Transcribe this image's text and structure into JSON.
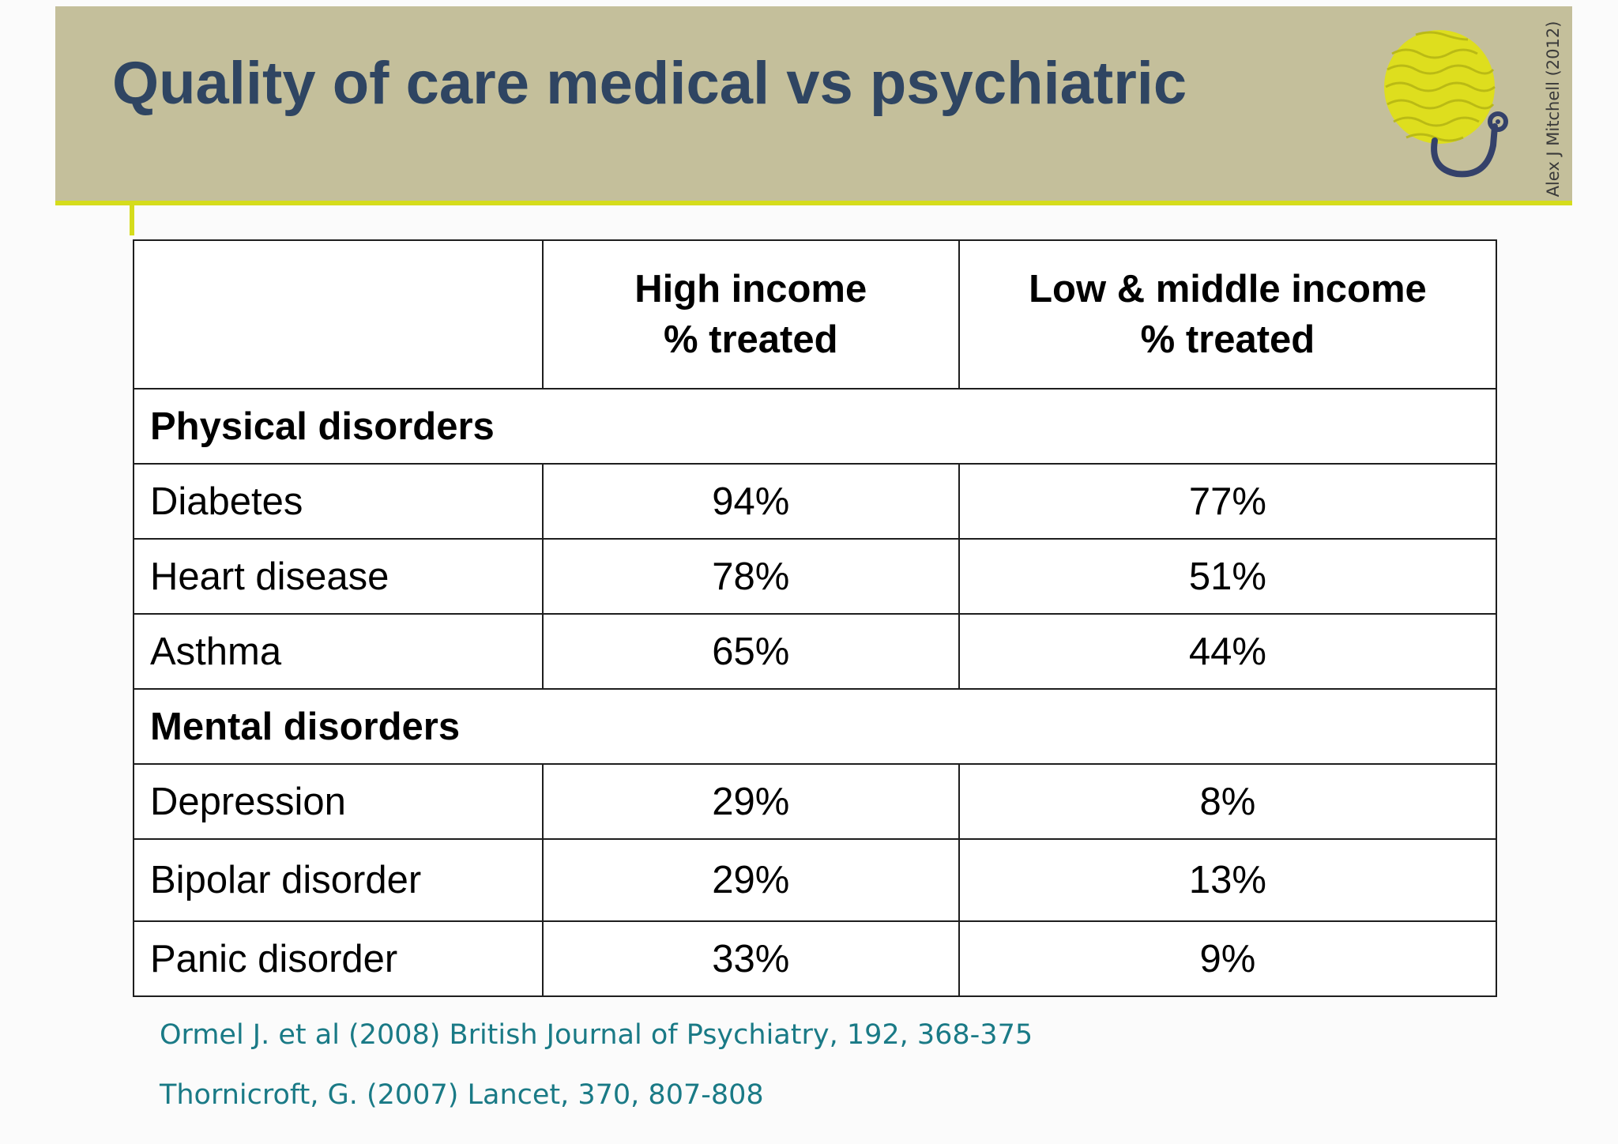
{
  "slide": {
    "title": "Quality of care medical vs psychiatric",
    "credit": "Alex J Mitchell (2012)",
    "logo_icon": "brain-stethoscope-icon",
    "colors": {
      "title_bar": "#c4bf9b",
      "accent": "#d5dc1c",
      "title_text": "#2f4562",
      "reference_text": "#1a7a86"
    }
  },
  "table": {
    "headers": {
      "high_line1": "High income",
      "high_line2": "% treated",
      "low_line1": "Low & middle income",
      "low_line2": "% treated"
    },
    "sections": [
      {
        "name": "Physical disorders",
        "rows": [
          {
            "label": "Diabetes",
            "high": "94%",
            "low": "77%"
          },
          {
            "label": "Heart disease",
            "high": "78%",
            "low": "51%"
          },
          {
            "label": "Asthma",
            "high": "65%",
            "low": "44%"
          }
        ]
      },
      {
        "name": "Mental disorders",
        "rows": [
          {
            "label": "Depression",
            "high": "29%",
            "low": "8%"
          },
          {
            "label": "Bipolar disorder",
            "high": "29%",
            "low": "13%"
          },
          {
            "label": "Panic disorder",
            "high": "33%",
            "low": "9%"
          }
        ]
      }
    ]
  },
  "references": [
    "Ormel J. et al (2008) British Journal of Psychiatry, 192, 368-375",
    "Thornicroft, G. (2007) Lancet, 370, 807-808"
  ]
}
